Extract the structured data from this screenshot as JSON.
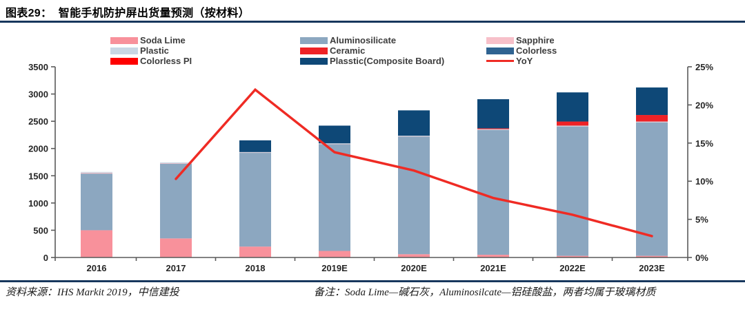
{
  "header": {
    "title": "图表29：  智能手机防护屏出货量预测（按材料）"
  },
  "footer": {
    "source": "资料来源：IHS Markit 2019，中信建投",
    "note": "备注：Soda Lime—碱石灰，Aluminosilcate—铝硅酸盐，两者均属于玻璃材质"
  },
  "colors": {
    "rule_navy": "#17375d",
    "axis_line": "#595959",
    "soda_lime": "#f8919b",
    "aluminosilicate": "#8ca7c0",
    "sapphire": "#f7c0c9",
    "plastic": "#c9d7e4",
    "ceramic": "#ee2226",
    "colorless": "#2f6391",
    "colorless_pi": "#fe0000",
    "plasstic_composite": "#0e4877",
    "yoy_line": "#ef2b24"
  },
  "chart_data": {
    "type": "bar",
    "subtype": "stacked-bars-with-yoy-line",
    "title": "智能手机防护屏出货量预测（按材料）",
    "xlabel": "",
    "ylabel_left": "",
    "ylabel_right": "",
    "grid": false,
    "legend_position": "top-center",
    "categories": [
      "2016",
      "2017",
      "2018",
      "2019E",
      "2020E",
      "2021E",
      "2022E",
      "2023E"
    ],
    "series": [
      {
        "name": "Soda Lime",
        "color": "#f8919b",
        "values": [
          500,
          350,
          200,
          120,
          60,
          50,
          30,
          30
        ]
      },
      {
        "name": "Aluminosilicate",
        "color": "#8ca7c0",
        "values": [
          1040,
          1375,
          1720,
          1960,
          2160,
          2290,
          2375,
          2450
        ]
      },
      {
        "name": "Sapphire",
        "color": "#f7c0c9",
        "values": [
          15,
          5,
          10,
          10,
          10,
          10,
          10,
          10
        ]
      },
      {
        "name": "Plastic",
        "color": "#c9d7e4",
        "values": [
          15,
          15,
          5,
          5,
          5,
          5,
          5,
          5
        ]
      },
      {
        "name": "Ceramic",
        "color": "#ee2226",
        "values": [
          0,
          0,
          0,
          0,
          0,
          15,
          75,
          120
        ]
      },
      {
        "name": "Colorless",
        "color": "#2f6391",
        "values": [
          0,
          0,
          0,
          0,
          0,
          0,
          0,
          0
        ]
      },
      {
        "name": "Colorless PI",
        "color": "#fe0000",
        "values": [
          0,
          0,
          0,
          0,
          0,
          0,
          0,
          0
        ]
      },
      {
        "name": "Plasstic(Composite Board)",
        "color": "#0e4877",
        "values": [
          0,
          0,
          215,
          325,
          465,
          535,
          535,
          505
        ]
      }
    ],
    "bar_totals": [
      1570,
      1745,
      2150,
      2420,
      2700,
      2905,
      3030,
      3120
    ],
    "line_series": {
      "name": "YoY",
      "color": "#ef2b24",
      "values_pct": [
        null,
        10.3,
        22.0,
        13.8,
        11.4,
        7.8,
        5.6,
        2.8
      ]
    },
    "left_axis": {
      "min": 0,
      "max": 3500,
      "step": 500,
      "tick_labels": [
        "0",
        "500",
        "1000",
        "1500",
        "2000",
        "2500",
        "3000",
        "3500"
      ]
    },
    "right_axis": {
      "min": 0,
      "max": 25,
      "step": 5,
      "tick_labels": [
        "0%",
        "5%",
        "10%",
        "15%",
        "20%",
        "25%"
      ]
    },
    "legend": [
      {
        "label": "Soda Lime",
        "color": "#f8919b",
        "type": "box"
      },
      {
        "label": "Aluminosilicate",
        "color": "#8ca7c0",
        "type": "box"
      },
      {
        "label": "Sapphire",
        "color": "#f7c0c9",
        "type": "box"
      },
      {
        "label": "Plastic",
        "color": "#c9d7e4",
        "type": "box"
      },
      {
        "label": "Ceramic",
        "color": "#ee2226",
        "type": "box"
      },
      {
        "label": "Colorless",
        "color": "#2f6391",
        "type": "box"
      },
      {
        "label": "Colorless PI",
        "color": "#fe0000",
        "type": "box"
      },
      {
        "label": "Plasstic(Composite Board)",
        "color": "#0e4877",
        "type": "box"
      },
      {
        "label": "YoY",
        "color": "#ef2b24",
        "type": "line"
      }
    ]
  }
}
